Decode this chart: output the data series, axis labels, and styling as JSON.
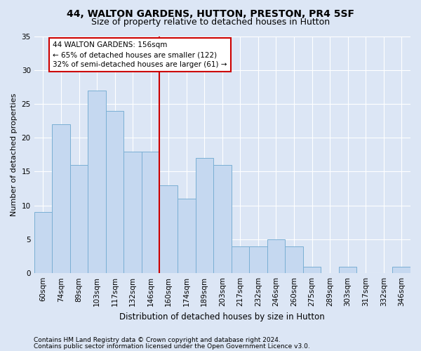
{
  "title": "44, WALTON GARDENS, HUTTON, PRESTON, PR4 5SF",
  "subtitle": "Size of property relative to detached houses in Hutton",
  "xlabel": "Distribution of detached houses by size in Hutton",
  "ylabel": "Number of detached properties",
  "categories": [
    "60sqm",
    "74sqm",
    "89sqm",
    "103sqm",
    "117sqm",
    "132sqm",
    "146sqm",
    "160sqm",
    "174sqm",
    "189sqm",
    "203sqm",
    "217sqm",
    "232sqm",
    "246sqm",
    "260sqm",
    "275sqm",
    "289sqm",
    "303sqm",
    "317sqm",
    "332sqm",
    "346sqm"
  ],
  "values": [
    9,
    22,
    16,
    27,
    24,
    18,
    18,
    13,
    11,
    17,
    16,
    4,
    4,
    5,
    4,
    1,
    0,
    1,
    0,
    0,
    1
  ],
  "bar_color": "#c5d8f0",
  "bar_edge_color": "#7aafd4",
  "vline_index": 7,
  "vline_color": "#cc0000",
  "annotation_text": "44 WALTON GARDENS: 156sqm\n← 65% of detached houses are smaller (122)\n32% of semi-detached houses are larger (61) →",
  "annotation_box_facecolor": "#ffffff",
  "annotation_box_edgecolor": "#cc0000",
  "ylim": [
    0,
    35
  ],
  "yticks": [
    0,
    5,
    10,
    15,
    20,
    25,
    30,
    35
  ],
  "footer1": "Contains HM Land Registry data © Crown copyright and database right 2024.",
  "footer2": "Contains public sector information licensed under the Open Government Licence v3.0.",
  "background_color": "#dce6f5",
  "plot_background_color": "#dce6f5",
  "title_fontsize": 10,
  "subtitle_fontsize": 9,
  "xlabel_fontsize": 8.5,
  "ylabel_fontsize": 8,
  "tick_fontsize": 7.5,
  "annotation_fontsize": 7.5,
  "footer_fontsize": 6.5
}
